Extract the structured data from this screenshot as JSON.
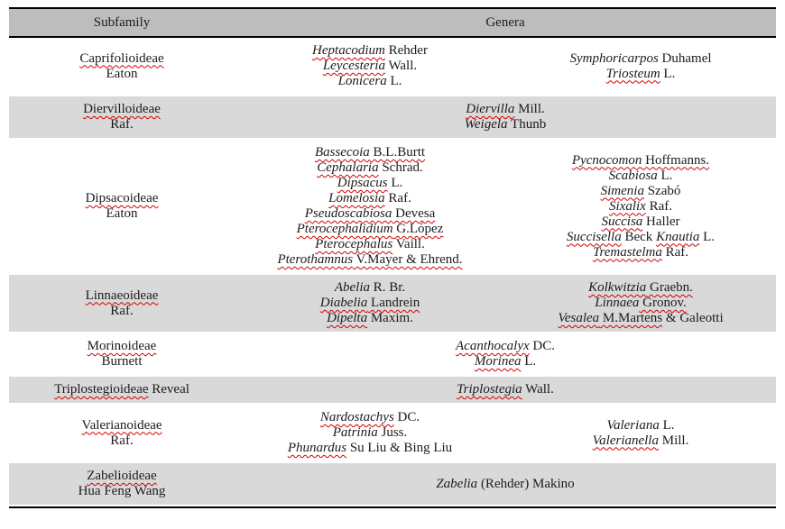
{
  "table": {
    "header": {
      "subfamily": "Subfamily",
      "genera": "Genera"
    },
    "colors": {
      "header_bg": "#bdbdbd",
      "row_shade": "#d9d9d9",
      "border": "#000000",
      "squiggle": "#d40000"
    },
    "rows": [
      {
        "shaded": false,
        "subfamily": [
          [
            {
              "t": "Caprifolioideae",
              "sq": true
            }
          ],
          [
            {
              "t": "Eaton"
            }
          ]
        ],
        "merged": false,
        "left": [
          [
            {
              "t": "Heptacodium",
              "it": true,
              "sq": true
            },
            {
              "t": " Rehder"
            }
          ],
          [
            {
              "t": "Leycesteria",
              "it": true,
              "sq": true
            },
            {
              "t": " Wall."
            }
          ],
          [
            {
              "t": "Lonicera",
              "it": true
            },
            {
              "t": " L."
            }
          ]
        ],
        "right": [
          [
            {
              "t": "Symphoricarpos",
              "it": true
            },
            {
              "t": " Duhamel"
            }
          ],
          [
            {
              "t": "Triosteum",
              "it": true,
              "sq": true
            },
            {
              "t": " L."
            }
          ]
        ]
      },
      {
        "shaded": true,
        "subfamily": [
          [
            {
              "t": "Diervilloideae",
              "sq": true
            }
          ],
          [
            {
              "t": "Raf."
            }
          ]
        ],
        "merged": true,
        "center": [
          [
            {
              "t": "Diervilla",
              "it": true,
              "sq": true
            },
            {
              "t": " Mill."
            }
          ],
          [
            {
              "t": "Weigela",
              "it": true
            },
            {
              "t": " Thunb"
            }
          ]
        ]
      },
      {
        "shaded": false,
        "subfamily": [
          [
            {
              "t": "Dipsacoideae",
              "sq": true
            }
          ],
          [
            {
              "t": "Eaton"
            }
          ]
        ],
        "merged": false,
        "left": [
          [
            {
              "t": "Bassecoia",
              "it": true,
              "sq": true
            },
            {
              "t": " B.L.Burtt",
              "sq": true
            }
          ],
          [
            {
              "t": "Cephalaria",
              "it": true,
              "sq": true
            },
            {
              "t": " Schrad."
            }
          ],
          [
            {
              "t": "Dipsacus",
              "it": true,
              "sq": true
            },
            {
              "t": " L."
            }
          ],
          [
            {
              "t": "Lomelosia",
              "it": true,
              "sq": true
            },
            {
              "t": " Raf."
            }
          ],
          [
            {
              "t": "Pseudoscabiosa",
              "it": true,
              "sq": true
            },
            {
              "t": " Devesa",
              "sq": true
            }
          ],
          [
            {
              "t": "Pterocephalidium",
              "it": true,
              "sq": true
            },
            {
              "t": " G.López",
              "sq": true
            }
          ],
          [
            {
              "t": "Pterocephalus",
              "it": true,
              "sq": true
            },
            {
              "t": " Vaill."
            }
          ],
          [
            {
              "t": "Pterothamnus",
              "it": true,
              "sq": true
            },
            {
              "t": " V.Mayer & Ehrend.",
              "sq": true
            }
          ]
        ],
        "right": [
          [
            {
              "t": "Pycnocomon",
              "it": true,
              "sq": true
            },
            {
              "t": " Hoffmanns.",
              "sq": true
            }
          ],
          [
            {
              "t": "Scabiosa",
              "it": true
            },
            {
              "t": " L."
            }
          ],
          [
            {
              "t": "Simenia",
              "it": true,
              "sq": true
            },
            {
              "t": " Szabó"
            }
          ],
          [
            {
              "t": "Sixalix",
              "it": true,
              "sq": true
            },
            {
              "t": " Raf."
            }
          ],
          [
            {
              "t": "Succisa",
              "it": true,
              "sq": true
            },
            {
              "t": " Haller"
            }
          ],
          [
            {
              "t": "Succisella",
              "it": true,
              "sq": true
            },
            {
              "t": " Beck "
            },
            {
              "t": "Knautia",
              "it": true,
              "sq": true
            },
            {
              "t": " L."
            }
          ],
          [
            {
              "t": "Tremastelma",
              "it": true,
              "sq": true
            },
            {
              "t": " Raf."
            }
          ]
        ]
      },
      {
        "shaded": true,
        "subfamily": [
          [
            {
              "t": "Linnaeoideae",
              "sq": true
            }
          ],
          [
            {
              "t": "Raf."
            }
          ]
        ],
        "merged": false,
        "left": [
          [
            {
              "t": "Abelia",
              "it": true
            },
            {
              "t": " R. Br."
            }
          ],
          [
            {
              "t": "Diabelia",
              "it": true,
              "sq": true
            },
            {
              "t": " Landrein",
              "sq": true
            }
          ],
          [
            {
              "t": "Dipelta",
              "it": true,
              "sq": true
            },
            {
              "t": " Maxim."
            }
          ]
        ],
        "right": [
          [
            {
              "t": "Kolkwitzia",
              "it": true,
              "sq": true
            },
            {
              "t": " Graebn.",
              "sq": true
            }
          ],
          [
            {
              "t": "Linnaea",
              "it": true
            },
            {
              "t": " Gronov.",
              "sq": true
            }
          ],
          [
            {
              "t": "Vesalea",
              "it": true,
              "sq": true
            },
            {
              "t": " M.Martens",
              "sq": true
            },
            {
              "t": " & Galeotti"
            }
          ]
        ]
      },
      {
        "shaded": false,
        "subfamily": [
          [
            {
              "t": "Morinoideae",
              "sq": true
            }
          ],
          [
            {
              "t": "Burnett"
            }
          ]
        ],
        "merged": true,
        "center": [
          [
            {
              "t": "Acanthocalyx",
              "it": true,
              "sq": true
            },
            {
              "t": " DC."
            }
          ],
          [
            {
              "t": "Morinea",
              "it": true,
              "sq": true
            },
            {
              "t": " L."
            }
          ]
        ]
      },
      {
        "shaded": true,
        "subfamily": [
          [
            {
              "t": "Triplostegioideae",
              "sq": true
            },
            {
              "t": " Reveal"
            }
          ]
        ],
        "merged": true,
        "center": [
          [
            {
              "t": "Triplostegia",
              "it": true,
              "sq": true
            },
            {
              "t": " Wall."
            }
          ]
        ]
      },
      {
        "shaded": false,
        "subfamily": [
          [
            {
              "t": "Valerianoideae",
              "sq": true
            }
          ],
          [
            {
              "t": "Raf."
            }
          ]
        ],
        "merged": false,
        "left": [
          [
            {
              "t": "Nardostachys",
              "it": true,
              "sq": true
            },
            {
              "t": " DC."
            }
          ],
          [
            {
              "t": "Patrinia",
              "it": true
            },
            {
              "t": " Juss."
            }
          ],
          [
            {
              "t": "Phunardus",
              "it": true,
              "sq": true
            },
            {
              "t": " Su Liu & Bing Liu"
            }
          ]
        ],
        "right": [
          [
            {
              "t": "Valeriana",
              "it": true
            },
            {
              "t": " L."
            }
          ],
          [
            {
              "t": "Valerianella",
              "it": true,
              "sq": true
            },
            {
              "t": " Mill."
            }
          ]
        ]
      },
      {
        "shaded": true,
        "subfamily": [
          [
            {
              "t": "Zabelioideae",
              "sq": true
            }
          ],
          [
            {
              "t": "Hua Feng Wang"
            }
          ]
        ],
        "merged": true,
        "center": [
          [
            {
              "t": "Zabelia",
              "it": true
            },
            {
              "t": " (Rehder) Makino"
            }
          ]
        ]
      }
    ]
  }
}
